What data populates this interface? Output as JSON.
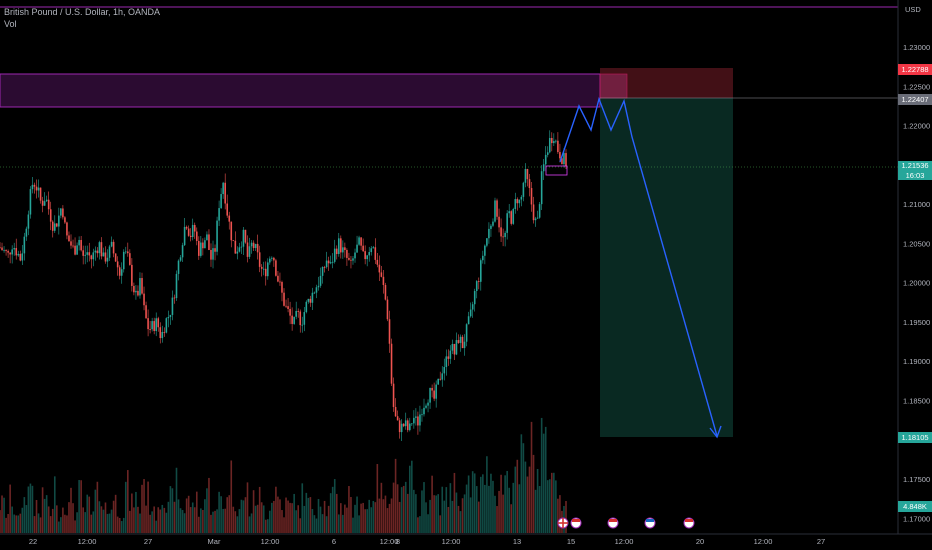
{
  "header": {
    "symbol_line": "British Pound / U.S. Dollar, 1h, OANDA",
    "volume_label": "Vol"
  },
  "chart_data": {
    "type": "candlestick",
    "currency": "USD",
    "y_axis_ticks": [
      "1.23000",
      "1.22500",
      "1.22000",
      "1.21500",
      "1.21000",
      "1.20500",
      "1.20000",
      "1.19500",
      "1.19000",
      "1.18500",
      "1.18000",
      "1.17500",
      "1.17000"
    ],
    "y_tick_values": [
      1.23,
      1.225,
      1.22,
      1.215,
      1.21,
      1.205,
      1.2,
      1.195,
      1.19,
      1.185,
      1.18,
      1.175,
      1.17
    ],
    "ylim": [
      1.168,
      1.236
    ],
    "x_axis_labels": [
      "22",
      "12:00",
      "27",
      "Mar",
      "12:00",
      "6",
      "12:00",
      "8",
      "12:00",
      "13",
      "15",
      "12:00",
      "20",
      "12:00",
      "27"
    ],
    "price_labels": {
      "stop": "1.22788",
      "entry": "1.22407",
      "last": "1.21536",
      "countdown": "16:03",
      "target": "1.18105",
      "volume": "4.848K"
    },
    "colors": {
      "up": "#26a69a",
      "down": "#ef5350",
      "zone": "#9c27b0",
      "projection": "#2962ff",
      "target_fill": "#0b3d33",
      "stop_fill": "#5a1a1f"
    },
    "price_path": [
      1.2045,
      1.204,
      1.2035,
      1.205,
      1.204,
      1.203,
      1.206,
      1.21,
      1.213,
      1.212,
      1.21,
      1.211,
      1.209,
      1.207,
      1.208,
      1.21,
      1.206,
      1.205,
      1.204,
      1.206,
      1.203,
      1.204,
      1.203,
      1.204,
      1.205,
      1.203,
      1.2035,
      1.2045,
      1.203,
      1.201,
      1.204,
      1.203,
      1.2,
      1.198,
      1.2,
      1.196,
      1.194,
      1.1945,
      1.195,
      1.193,
      1.195,
      1.196,
      1.198,
      1.202,
      1.205,
      1.208,
      1.206,
      1.207,
      1.204,
      1.205,
      1.206,
      1.203,
      1.204,
      1.21,
      1.213,
      1.209,
      1.206,
      1.204,
      1.205,
      1.206,
      1.203,
      1.205,
      1.204,
      1.202,
      1.201,
      1.203,
      1.204,
      1.201,
      1.199,
      1.197,
      1.196,
      1.1945,
      1.196,
      1.195,
      1.197,
      1.198,
      1.199,
      1.2,
      1.201,
      1.203,
      1.202,
      1.204,
      1.205,
      1.204,
      1.203,
      1.202,
      1.204,
      1.205,
      1.203,
      1.204,
      1.205,
      1.203,
      1.201,
      1.199,
      1.195,
      1.185,
      1.182,
      1.1815,
      1.182,
      1.181,
      1.183,
      1.182,
      1.184,
      1.185,
      1.186,
      1.185,
      1.187,
      1.189,
      1.19,
      1.192,
      1.191,
      1.193,
      1.192,
      1.194,
      1.196,
      1.199,
      1.201,
      1.204,
      1.206,
      1.208,
      1.21,
      1.207,
      1.205,
      1.209,
      1.208,
      1.211,
      1.21,
      1.214,
      1.212,
      1.209,
      1.207,
      1.213,
      1.216,
      1.218,
      1.219,
      1.217,
      1.216,
      1.2153
    ],
    "volume_path": [
      18,
      12,
      22,
      14,
      9,
      20,
      26,
      31,
      15,
      11,
      24,
      17,
      13,
      28,
      10,
      19,
      16,
      21,
      12,
      25,
      14,
      18,
      11,
      23,
      27,
      16,
      13,
      20,
      15,
      12,
      29,
      18,
      22,
      14,
      33,
      24,
      17,
      12,
      19,
      26,
      15,
      21,
      30,
      18,
      14,
      25,
      16,
      20,
      13,
      22,
      28,
      17,
      12,
      24,
      19,
      35,
      22,
      15,
      18,
      26,
      14,
      20,
      23,
      16,
      12,
      19,
      27,
      21,
      14,
      18,
      16,
      22,
      13,
      25,
      20,
      17,
      15,
      23,
      18,
      14,
      21,
      28,
      16,
      19,
      24,
      13,
      18,
      22,
      15,
      20,
      26,
      31,
      24,
      18,
      30,
      42,
      28,
      22,
      26,
      35,
      20,
      16,
      24,
      19,
      27,
      22,
      18,
      25,
      21,
      30,
      26,
      19,
      23,
      28,
      33,
      24,
      29,
      38,
      45,
      32,
      26,
      30,
      37,
      28,
      41,
      34,
      46,
      38,
      52,
      44,
      36,
      60,
      48,
      40,
      31,
      26,
      22,
      18
    ]
  }
}
